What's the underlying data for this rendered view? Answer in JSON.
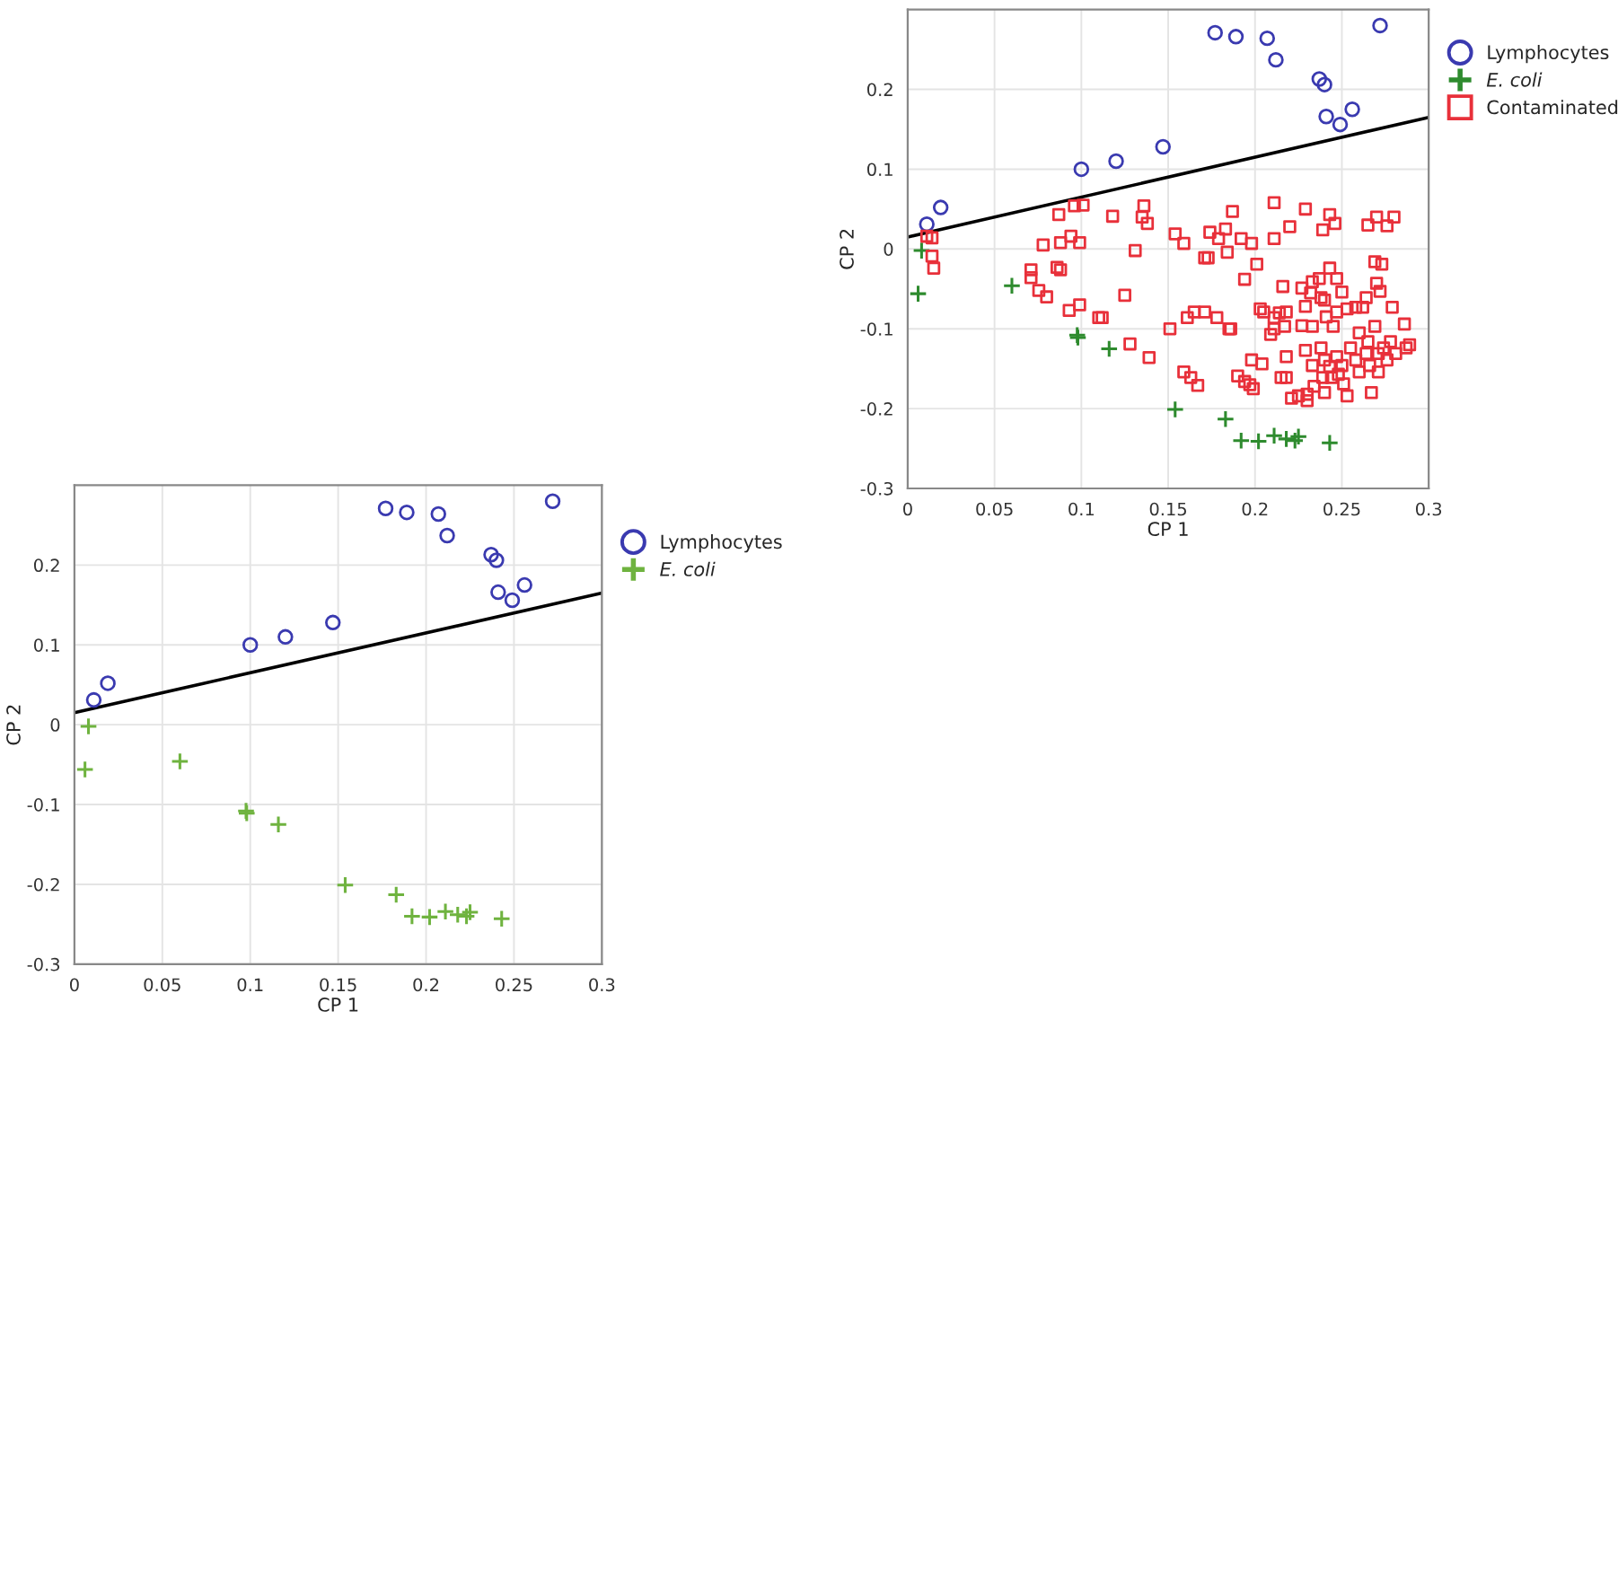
{
  "chart_data": [
    {
      "type": "scatter",
      "xlabel": "CP 1",
      "ylabel": "CP 2",
      "xlim": [
        0,
        0.3
      ],
      "ylim": [
        -0.3,
        0.3
      ],
      "xticks": [
        0,
        0.05,
        0.1,
        0.15,
        0.2,
        0.25,
        0.3
      ],
      "yticks": [
        -0.3,
        -0.2,
        -0.1,
        0,
        0.1,
        0.2
      ],
      "grid": true,
      "legend": "right",
      "series": [
        {
          "name": "Lymphocytes",
          "marker": "circle",
          "color": "#3a3ab0",
          "x": [
            0.011,
            0.019,
            0.1,
            0.12,
            0.147,
            0.177,
            0.189,
            0.207,
            0.212,
            0.237,
            0.24,
            0.241,
            0.249,
            0.256,
            0.272
          ],
          "values": [
            0.031,
            0.052,
            0.1,
            0.11,
            0.128,
            0.271,
            0.266,
            0.264,
            0.237,
            0.213,
            0.206,
            0.166,
            0.156,
            0.175,
            0.28
          ]
        },
        {
          "name": "E. coli",
          "marker": "cross",
          "color": "#6fb33f",
          "x": [
            0.008,
            0.006,
            0.06,
            0.0976,
            0.098,
            0.116,
            0.154,
            0.183,
            0.192,
            0.202,
            0.211,
            0.218,
            0.223,
            0.225,
            0.243
          ],
          "values": [
            -0.002,
            -0.056,
            -0.046,
            -0.108,
            -0.111,
            -0.125,
            -0.201,
            -0.213,
            -0.24,
            -0.241,
            -0.234,
            -0.238,
            -0.24,
            -0.235,
            -0.243
          ]
        },
        {
          "type": "line",
          "marker": "none",
          "color": "#000000",
          "x": [
            0,
            0.3
          ],
          "values": [
            0.015,
            0.165
          ]
        }
      ]
    },
    {
      "type": "scatter",
      "xlabel": "CP 1",
      "ylabel": "CP 2",
      "xlim": [
        0,
        0.3
      ],
      "ylim": [
        -0.3,
        0.3
      ],
      "xticks": [
        0,
        0.05,
        0.1,
        0.15,
        0.2,
        0.25,
        0.3
      ],
      "yticks": [
        -0.3,
        -0.2,
        -0.1,
        0,
        0.1,
        0.2
      ],
      "grid": true,
      "legend": "right",
      "series": [
        {
          "name": "Lymphocytes",
          "marker": "circle",
          "color": "#3a3ab0",
          "x": [
            0.011,
            0.019,
            0.1,
            0.12,
            0.147,
            0.177,
            0.189,
            0.207,
            0.212,
            0.237,
            0.24,
            0.241,
            0.249,
            0.256,
            0.272
          ],
          "values": [
            0.031,
            0.052,
            0.1,
            0.11,
            0.128,
            0.271,
            0.266,
            0.264,
            0.237,
            0.213,
            0.206,
            0.166,
            0.156,
            0.175,
            0.28
          ]
        },
        {
          "name": "E. coli",
          "marker": "cross",
          "color": "#2e8b2e",
          "x": [
            0.008,
            0.006,
            0.06,
            0.0976,
            0.098,
            0.116,
            0.154,
            0.183,
            0.192,
            0.202,
            0.211,
            0.218,
            0.223,
            0.225,
            0.243
          ],
          "values": [
            -0.002,
            -0.056,
            -0.046,
            -0.108,
            -0.111,
            -0.125,
            -0.201,
            -0.213,
            -0.24,
            -0.241,
            -0.234,
            -0.238,
            -0.24,
            -0.235,
            -0.243
          ]
        },
        {
          "name": "Contaminated",
          "marker": "square",
          "color": "#e8303a",
          "x": [
            0.011,
            0.014,
            0.014,
            0.015,
            0.071,
            0.071,
            0.0755,
            0.08,
            0.078,
            0.087,
            0.088,
            0.086,
            0.088,
            0.094,
            0.096,
            0.101,
            0.099,
            0.093,
            0.099,
            0.11,
            0.112,
            0.118,
            0.125,
            0.128,
            0.131,
            0.135,
            0.136,
            0.138,
            0.139,
            0.154,
            0.159,
            0.171,
            0.173,
            0.174,
            0.179,
            0.183,
            0.187,
            0.184,
            0.192,
            0.198,
            0.201,
            0.194,
            0.211,
            0.211,
            0.22,
            0.229,
            0.239,
            0.243,
            0.246,
            0.265,
            0.27,
            0.276,
            0.28,
            0.216,
            0.227,
            0.233,
            0.237,
            0.243,
            0.247,
            0.25,
            0.238,
            0.24,
            0.229,
            0.232,
            0.269,
            0.273,
            0.27,
            0.272,
            0.279,
            0.264,
            0.262,
            0.258,
            0.253,
            0.247,
            0.245,
            0.241,
            0.233,
            0.227,
            0.218,
            0.214,
            0.211,
            0.209,
            0.211,
            0.203,
            0.205,
            0.217,
            0.185,
            0.186,
            0.178,
            0.171,
            0.165,
            0.161,
            0.151,
            0.159,
            0.163,
            0.167,
            0.19,
            0.194,
            0.197,
            0.199,
            0.198,
            0.204,
            0.218,
            0.215,
            0.218,
            0.221,
            0.225,
            0.23,
            0.23,
            0.234,
            0.24,
            0.229,
            0.233,
            0.238,
            0.24,
            0.243,
            0.247,
            0.25,
            0.251,
            0.253,
            0.248,
            0.255,
            0.258,
            0.26,
            0.264,
            0.266,
            0.267,
            0.271,
            0.269,
            0.274,
            0.278,
            0.281,
            0.286,
            0.287,
            0.289,
            0.265,
            0.26,
            0.271,
            0.276,
            0.239,
            0.244
          ],
          "values": [
            0.016,
            0.014,
            -0.009,
            -0.024,
            -0.026,
            -0.036,
            -0.052,
            -0.06,
            0.005,
            0.043,
            0.008,
            -0.023,
            -0.026,
            0.016,
            0.054,
            0.055,
            0.008,
            -0.077,
            -0.07,
            -0.086,
            -0.086,
            0.041,
            -0.058,
            -0.119,
            -0.002,
            0.04,
            0.054,
            0.032,
            -0.136,
            0.019,
            0.007,
            -0.011,
            -0.011,
            0.021,
            0.013,
            0.025,
            0.047,
            -0.004,
            0.013,
            0.007,
            -0.019,
            -0.038,
            0.058,
            0.013,
            0.028,
            0.05,
            0.024,
            0.043,
            0.032,
            0.03,
            0.04,
            0.029,
            0.04,
            -0.047,
            -0.049,
            -0.041,
            -0.037,
            -0.024,
            -0.037,
            -0.054,
            -0.061,
            -0.064,
            -0.072,
            -0.055,
            -0.016,
            -0.019,
            -0.043,
            -0.053,
            -0.073,
            -0.061,
            -0.073,
            -0.073,
            -0.075,
            -0.079,
            -0.097,
            -0.085,
            -0.097,
            -0.096,
            -0.079,
            -0.08,
            -0.086,
            -0.107,
            -0.1,
            -0.075,
            -0.079,
            -0.097,
            -0.1,
            -0.1,
            -0.086,
            -0.079,
            -0.079,
            -0.086,
            -0.1,
            -0.154,
            -0.161,
            -0.171,
            -0.159,
            -0.166,
            -0.17,
            -0.175,
            -0.139,
            -0.144,
            -0.135,
            -0.161,
            -0.161,
            -0.187,
            -0.184,
            -0.182,
            -0.19,
            -0.172,
            -0.18,
            -0.127,
            -0.146,
            -0.124,
            -0.139,
            -0.147,
            -0.135,
            -0.146,
            -0.169,
            -0.184,
            -0.157,
            -0.124,
            -0.139,
            -0.154,
            -0.131,
            -0.146,
            -0.18,
            -0.154,
            -0.097,
            -0.124,
            -0.116,
            -0.131,
            -0.094,
            -0.124,
            -0.12,
            -0.116,
            -0.105,
            -0.131,
            -0.139,
            -0.161,
            -0.161
          ]
        },
        {
          "type": "line",
          "marker": "none",
          "color": "#000000",
          "x": [
            0,
            0.3
          ],
          "values": [
            0.015,
            0.165
          ]
        }
      ]
    }
  ]
}
